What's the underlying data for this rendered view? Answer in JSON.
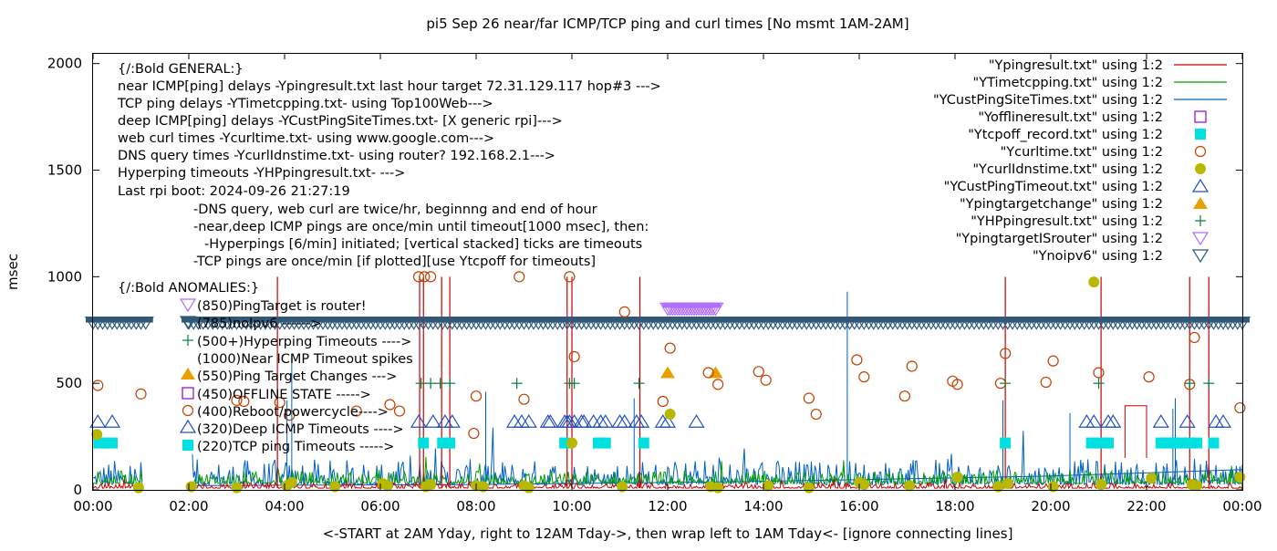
{
  "chart_data": {
    "type": "line",
    "title": "pi5 Sep 26  near/far ICMP/TCP ping and curl times [No msmt 1AM-2AM]",
    "xlabel": "<-START at 2AM Yday, right to 12AM Tday->, then wrap left to 1AM Tday<- [ignore connecting lines]",
    "ylabel": "msec",
    "xlim_hours": [
      0,
      24
    ],
    "ylim": [
      0,
      2050
    ],
    "xticks": [
      "00:00",
      "02:00",
      "04:00",
      "06:00",
      "08:00",
      "10:00",
      "12:00",
      "14:00",
      "16:00",
      "18:00",
      "20:00",
      "22:00",
      "00:00"
    ],
    "yticks": [
      "0",
      "500",
      "1000",
      "1500",
      "2000"
    ],
    "ytick_values": [
      0,
      500,
      1000,
      1500,
      2000
    ],
    "grid": false,
    "legend_position": "top-right",
    "annotations": [
      "{/:Bold GENERAL:}",
      "near ICMP[ping] delays -Ypingresult.txt last hour target 72.31.129.117 hop#3 --->",
      "TCP ping delays -YTimetcpping.txt- using Top100Web--->",
      "deep ICMP[ping] delays -YCustPingSiteTimes.txt- [X generic rpi]--->",
      "web curl times -Ycurltime.txt- using www.google.com--->",
      "DNS query times -YcurlIdnstime.txt- using router? 192.168.2.1--->",
      "Hyperping timeouts -YHPpingresult.txt- --->",
      "Last rpi boot: 2024-09-26 21:27:19",
      "-DNS query, web curl are twice/hr, beginnng and end of hour",
      "-near,deep ICMP pings are once/min until timeout[1000 msec], then:",
      "-Hyperpings [6/min] initiated; [vertical stacked] ticks are timeouts",
      "-TCP pings are once/min [if plotted][use Ytcpoff for timeouts]",
      "{/:Bold ANOMALIES:}",
      "(850)PingTarget is router!",
      "(785)noIpv6 ------>",
      "(500+)Hyperping Timeouts ---->",
      "(1000)Near ICMP Timeout spikes",
      "(550)Ping Target Changes --->",
      "(450)OFFLINE STATE ----->",
      "(400)Reboot/powercycle---->",
      "(320)Deep ICMP Timeouts ---->",
      "(220)TCP ping Timeouts ----->"
    ],
    "series": [
      {
        "name": "\"Ypingresult.txt\" using 1:2",
        "style": "line",
        "color": "#cc0000",
        "baseline": 8,
        "spikes": [
          [
            3.85,
            1000
          ],
          [
            6.82,
            1000
          ],
          [
            6.9,
            1000
          ],
          [
            7.28,
            1000
          ],
          [
            7.45,
            1000
          ],
          [
            9.9,
            1000
          ],
          [
            10.0,
            1000
          ],
          [
            11.42,
            1000
          ],
          [
            19.05,
            1000
          ],
          [
            21.05,
            1000
          ],
          [
            22.9,
            1000
          ],
          [
            23.3,
            1000
          ]
        ],
        "step": {
          "x_start": 21.55,
          "x_end": 22.0,
          "y": 395
        }
      },
      {
        "name": "\"YTimetcpping.txt\" using 1:2",
        "style": "line",
        "color": "#00a000",
        "baseline": 30,
        "noise": 60
      },
      {
        "name": "\"YCustPingSiteTimes.txt\" using 1:2",
        "style": "line",
        "color": "#0060c0",
        "baseline": 25,
        "noise": 120,
        "spikes": [
          [
            4.05,
            420
          ],
          [
            4.15,
            630
          ],
          [
            8.2,
            460
          ],
          [
            11.3,
            430
          ],
          [
            15.75,
            930
          ],
          [
            19.0,
            420
          ],
          [
            20.4,
            360
          ],
          [
            22.55,
            380
          ],
          [
            22.6,
            430
          ]
        ]
      },
      {
        "name": "\"Yofflineresult.txt\" using 1:2",
        "style": "open-square",
        "color": "#9400d3",
        "points": []
      },
      {
        "name": "\"Ytcpoff_record.txt\" using 1:2",
        "style": "filled-square",
        "color": "#00e0e0",
        "y": 220,
        "x": [
          0.12,
          0.25,
          0.4,
          6.9,
          7.3,
          7.45,
          9.85,
          10.55,
          10.7,
          11.5,
          19.05,
          20.85,
          21.05,
          21.2,
          22.3,
          22.45,
          22.6,
          22.75,
          22.9,
          23.05,
          23.4
        ]
      },
      {
        "name": "\"Ycurltime.txt\" using 1:2",
        "style": "open-circle",
        "color": "#c04000",
        "points": [
          [
            0.1,
            490
          ],
          [
            1.0,
            450
          ],
          [
            3.0,
            420
          ],
          [
            3.15,
            415
          ],
          [
            3.9,
            410
          ],
          [
            4.1,
            350
          ],
          [
            5.5,
            370
          ],
          [
            6.2,
            400
          ],
          [
            6.4,
            370
          ],
          [
            6.8,
            1000
          ],
          [
            6.92,
            1000
          ],
          [
            7.05,
            1000
          ],
          [
            7.95,
            265
          ],
          [
            8.0,
            440
          ],
          [
            8.9,
            1000
          ],
          [
            9.0,
            425
          ],
          [
            9.95,
            1000
          ],
          [
            10.05,
            625
          ],
          [
            11.1,
            835
          ],
          [
            11.9,
            415
          ],
          [
            12.05,
            665
          ],
          [
            12.85,
            550
          ],
          [
            13.05,
            495
          ],
          [
            13.9,
            555
          ],
          [
            14.05,
            515
          ],
          [
            14.95,
            430
          ],
          [
            15.1,
            355
          ],
          [
            15.95,
            610
          ],
          [
            16.1,
            530
          ],
          [
            16.95,
            440
          ],
          [
            17.1,
            580
          ],
          [
            17.95,
            510
          ],
          [
            18.05,
            495
          ],
          [
            18.95,
            500
          ],
          [
            19.05,
            640
          ],
          [
            19.9,
            505
          ],
          [
            20.05,
            605
          ],
          [
            21.0,
            550
          ],
          [
            22.05,
            530
          ],
          [
            22.9,
            495
          ],
          [
            23.0,
            715
          ],
          [
            23.95,
            385
          ]
        ]
      },
      {
        "name": "\"YcurlIdnstime.txt\" using 1:2",
        "style": "filled-circle",
        "color": "#b8b800",
        "points": [
          [
            0.08,
            260
          ],
          [
            0.95,
            10
          ],
          [
            2.05,
            15
          ],
          [
            3.0,
            10
          ],
          [
            4.05,
            20
          ],
          [
            4.15,
            35
          ],
          [
            5.05,
            15
          ],
          [
            6.05,
            30
          ],
          [
            6.15,
            20
          ],
          [
            6.95,
            15
          ],
          [
            7.05,
            25
          ],
          [
            8.0,
            20
          ],
          [
            8.15,
            15
          ],
          [
            9.0,
            20
          ],
          [
            9.1,
            10
          ],
          [
            10.0,
            220
          ],
          [
            11.05,
            15
          ],
          [
            12.05,
            355
          ],
          [
            12.9,
            15
          ],
          [
            13.05,
            10
          ],
          [
            14.1,
            20
          ],
          [
            14.95,
            10
          ],
          [
            16.0,
            35
          ],
          [
            16.1,
            25
          ],
          [
            17.05,
            20
          ],
          [
            18.05,
            60
          ],
          [
            18.9,
            15
          ],
          [
            19.1,
            30
          ],
          [
            20.05,
            15
          ],
          [
            20.9,
            975
          ],
          [
            21.05,
            25
          ],
          [
            22.1,
            55
          ],
          [
            22.95,
            25
          ],
          [
            23.05,
            20
          ],
          [
            23.95,
            60
          ]
        ]
      },
      {
        "name": "\"YCustPingTimeout.txt\" using 1:2",
        "style": "open-triangle-up",
        "color": "#2050c0",
        "y": 320,
        "x": [
          0.1,
          0.4,
          6.8,
          7.1,
          7.35,
          7.5,
          8.8,
          8.95,
          9.1,
          9.5,
          9.55,
          9.85,
          9.9,
          9.95,
          10.05,
          10.2,
          10.25,
          10.45,
          10.6,
          10.7,
          11.0,
          11.1,
          11.35,
          11.45,
          11.9,
          12.0,
          12.6,
          20.75,
          20.9,
          21.2,
          21.3,
          22.3,
          22.85,
          23.45,
          23.6
        ]
      },
      {
        "name": "\"Ypingtargetchange\" using 1:2",
        "style": "filled-triangle-up",
        "color": "#e8a000",
        "y": 550,
        "x": [
          12.0,
          13.0
        ]
      },
      {
        "name": "\"YHPpingresult.txt\" using 1:2",
        "style": "plus",
        "color": "#008040",
        "y": 500,
        "x": [
          6.85,
          7.05,
          7.25,
          7.45,
          8.85,
          9.95,
          10.05,
          11.4,
          19.05,
          21.0,
          22.9,
          23.3
        ]
      },
      {
        "name": "\"YpingtargetISrouter\" using 1:2",
        "style": "open-triangle-down",
        "color": "#b070ff",
        "y": 850,
        "x_start": 12.0,
        "x_end": 13.0
      },
      {
        "name": "\"Ynoipv6\" using 1:2",
        "style": "open-triangle-down",
        "color": "#305878",
        "y": 785,
        "x_start": 0.0,
        "x_end": 24.0,
        "gap": [
          1.1,
          2.0
        ]
      }
    ]
  }
}
